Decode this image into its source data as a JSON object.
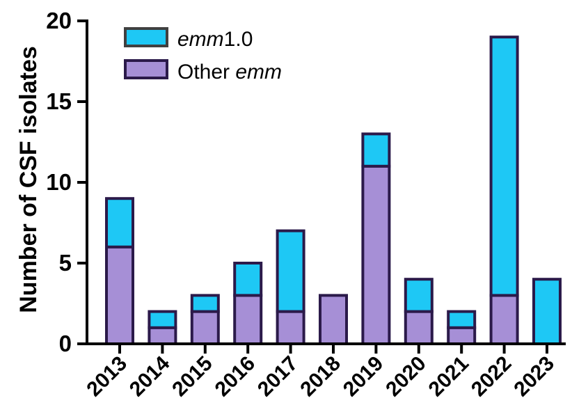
{
  "chart_data": {
    "type": "bar",
    "stacked": true,
    "categories": [
      "2013",
      "2014",
      "2015",
      "2016",
      "2017",
      "2018",
      "2019",
      "2020",
      "2021",
      "2022",
      "2023"
    ],
    "series": [
      {
        "name": "Other emm",
        "legend_plain": "Other ",
        "legend_italic": "emm",
        "color": "#a68fd6",
        "values": [
          6,
          1,
          2,
          3,
          2,
          3,
          11,
          2,
          1,
          3,
          0
        ]
      },
      {
        "name": "emm1.0",
        "legend_italic": "emm",
        "legend_plain": "1.0",
        "color": "#1ec8f5",
        "values": [
          3,
          1,
          1,
          2,
          5,
          0,
          2,
          2,
          1,
          16,
          4
        ]
      }
    ],
    "ylabel": "Number of CSF isolates",
    "xlabel": "",
    "ylim": [
      0,
      20
    ],
    "yticks": [
      "0",
      "5",
      "10",
      "15",
      "20"
    ],
    "grid": false,
    "legend_position": "top-left",
    "outline_color": "#2b1a4a"
  }
}
